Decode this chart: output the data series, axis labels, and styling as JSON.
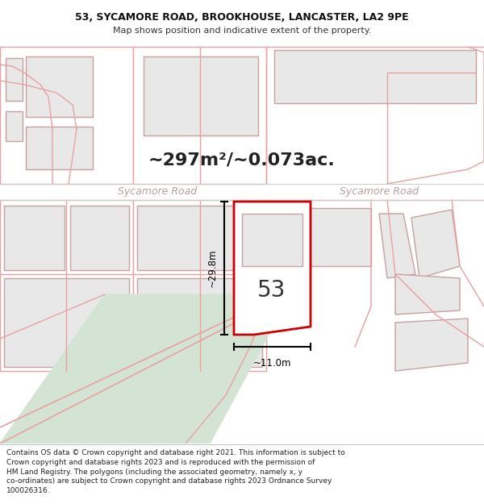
{
  "title_line1": "53, SYCAMORE ROAD, BROOKHOUSE, LANCASTER, LA2 9PE",
  "title_line2": "Map shows position and indicative extent of the property.",
  "area_text": "~297m²/~0.073ac.",
  "road_label": "Sycamore Road",
  "property_number": "53",
  "dim_width": "~11.0m",
  "dim_height": "~29.8m",
  "footer_lines": [
    "Contains OS data © Crown copyright and database right 2021. This information is subject to Crown copyright and database rights 2023 and is reproduced with the permission of",
    "HM Land Registry. The polygons (including the associated geometry, namely x, y co-ordinates) are subject to Crown copyright and database rights 2023 Ordnance Survey",
    "100026316."
  ],
  "bg_color": "#ffffff",
  "road_line_color": "#e8a0a0",
  "road_band_color": "#f0d0d0",
  "green_color": "#d4e4d4",
  "building_fill": "#e8e8e8",
  "building_stroke": "#c8a0a0",
  "highlight_stroke": "#cc0000",
  "highlight_fill": "#ffffff",
  "road_text_color": "#b8a0a0",
  "area_text_color": "#222222",
  "dim_color": "#000000",
  "footer_color": "#222222"
}
